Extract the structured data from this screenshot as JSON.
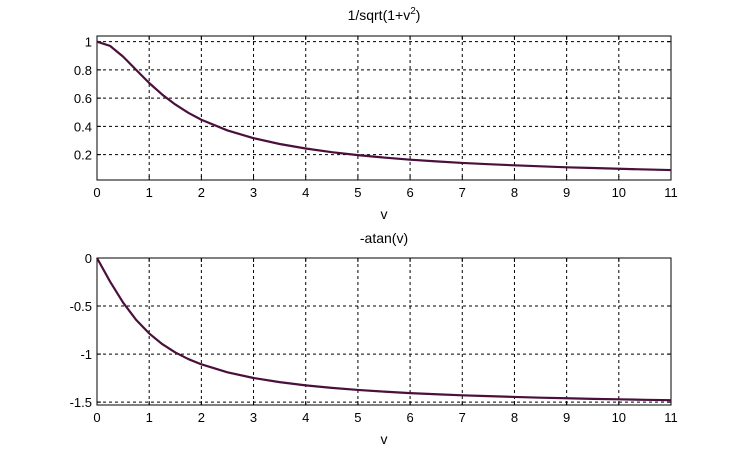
{
  "chart_data": [
    {
      "type": "line",
      "title": "1/sqrt(1+v^2)",
      "title_base": "1/sqrt(1+v",
      "title_sup": "2",
      "title_end": ")",
      "xlabel": "v",
      "ylabel": "",
      "xlim": [
        0,
        11
      ],
      "ylim": [
        0.02,
        1.04
      ],
      "x_ticks": [
        "0",
        "1",
        "2",
        "3",
        "4",
        "5",
        "6",
        "7",
        "8",
        "9",
        "10",
        "11"
      ],
      "y_ticks": [
        "0.2",
        "0.4",
        "0.6",
        "0.8",
        "1"
      ],
      "y_tick_values": [
        0.2,
        0.4,
        0.6,
        0.8,
        1.0
      ],
      "grid": true,
      "line_color": "#4b0f3c",
      "series": [
        {
          "x": [
            0,
            0.25,
            0.5,
            0.75,
            1,
            1.25,
            1.5,
            1.75,
            2,
            2.5,
            3,
            3.5,
            4,
            4.5,
            5,
            5.5,
            6,
            6.5,
            7,
            7.5,
            8,
            8.5,
            9,
            9.5,
            10,
            10.5,
            11
          ],
          "values": [
            1.0,
            0.97,
            0.894,
            0.8,
            0.707,
            0.625,
            0.555,
            0.496,
            0.447,
            0.371,
            0.316,
            0.275,
            0.243,
            0.217,
            0.196,
            0.179,
            0.164,
            0.152,
            0.141,
            0.132,
            0.124,
            0.117,
            0.11,
            0.105,
            0.0995,
            0.0948,
            0.0905
          ]
        }
      ]
    },
    {
      "type": "line",
      "title": "-atan(v)",
      "xlabel": "v",
      "ylabel": "",
      "xlim": [
        0,
        11
      ],
      "ylim": [
        -1.53,
        0
      ],
      "x_ticks": [
        "0",
        "1",
        "2",
        "3",
        "4",
        "5",
        "6",
        "7",
        "8",
        "9",
        "10",
        "11"
      ],
      "y_ticks": [
        "0",
        "-0.5",
        "-1",
        "-1.5"
      ],
      "y_tick_values": [
        0,
        -0.5,
        -1.0,
        -1.5
      ],
      "grid": true,
      "line_color": "#4b0f3c",
      "series": [
        {
          "x": [
            0,
            0.25,
            0.5,
            0.75,
            1,
            1.25,
            1.5,
            1.75,
            2,
            2.5,
            3,
            3.5,
            4,
            4.5,
            5,
            5.5,
            6,
            6.5,
            7,
            7.5,
            8,
            8.5,
            9,
            9.5,
            10,
            10.5,
            11
          ],
          "values": [
            0,
            -0.245,
            -0.464,
            -0.644,
            -0.785,
            -0.896,
            -0.983,
            -1.052,
            -1.107,
            -1.19,
            -1.249,
            -1.292,
            -1.326,
            -1.352,
            -1.373,
            -1.391,
            -1.406,
            -1.418,
            -1.429,
            -1.438,
            -1.446,
            -1.454,
            -1.46,
            -1.466,
            -1.471,
            -1.476,
            -1.48
          ]
        }
      ]
    }
  ]
}
